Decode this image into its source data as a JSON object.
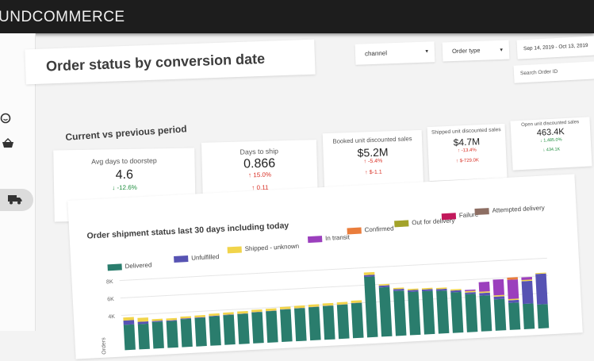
{
  "app": {
    "brand": "UNDCOMMERCE"
  },
  "page": {
    "title": "Order status by conversion date"
  },
  "filters": {
    "channel": "channel",
    "order_type": "Order type",
    "date_range": "Sep 14, 2019 - Oct 13, 2019",
    "search_placeholder": "Search Order ID"
  },
  "sidebar": {
    "icons": [
      "smile-icon",
      "basket-icon",
      "truck-icon"
    ],
    "active": "truck-icon"
  },
  "kpi_section": {
    "title": "Current vs previous period"
  },
  "kpis": [
    {
      "label": "Avg days to doorstep",
      "value": "4.6",
      "delta1": "-12.6%",
      "delta1_dir": "up",
      "delta2": "-0.66",
      "delta2_dir": "up"
    },
    {
      "label": "Days to ship",
      "value": "0.866",
      "delta1": "15.0%",
      "delta1_dir": "down",
      "delta2": "0.11",
      "delta2_dir": "down"
    },
    {
      "label": "Booked unit discounted sales",
      "value": "$5.2M",
      "delta1": "-5.4%",
      "delta1_dir": "down",
      "delta2": "$-1.1",
      "delta2_dir": "down"
    },
    {
      "label": "Shipped unit discounted sales",
      "value": "$4.7M",
      "delta1": "-13.4%",
      "delta1_dir": "down",
      "delta2": "$-729.0K",
      "delta2_dir": "down"
    },
    {
      "label": "Open unit discounted sales",
      "value": "463.4K",
      "delta1": "1,485.0%",
      "delta1_dir": "up",
      "delta2": "434.1K",
      "delta2_dir": "up"
    }
  ],
  "chart_data": {
    "type": "bar",
    "stacked": true,
    "title": "Order shipment status last 30 days including today",
    "ylabel": "Orders",
    "ylim": [
      0,
      10000
    ],
    "yticks": [
      "4K",
      "6K",
      "8K"
    ],
    "legend": [
      {
        "name": "Delivered",
        "color": "#2a7d6d"
      },
      {
        "name": "Unfulfilled",
        "color": "#5753b3"
      },
      {
        "name": "Shipped - unknown",
        "color": "#f1d44a"
      },
      {
        "name": "In transit",
        "color": "#9b3fbd"
      },
      {
        "name": "Confirmed",
        "color": "#ea7d3c"
      },
      {
        "name": "Out for delivery",
        "color": "#a3a32a"
      },
      {
        "name": "Failure",
        "color": "#c2185b"
      },
      {
        "name": "Attempted delivery",
        "color": "#8d6e63"
      }
    ],
    "series": [
      {
        "name": "Delivered",
        "values": [
          2900,
          2900,
          3050,
          3050,
          3200,
          3250,
          3350,
          3400,
          3450,
          3550,
          3600,
          3700,
          3750,
          3800,
          3850,
          3900,
          4000,
          6950,
          5650,
          5150,
          4950,
          4950,
          4900,
          4650,
          4350,
          4100,
          3600,
          3100,
          2900,
          2750
        ]
      },
      {
        "name": "Unfulfilled",
        "values": [
          500,
          260,
          110,
          90,
          70,
          60,
          50,
          50,
          40,
          40,
          30,
          30,
          30,
          30,
          30,
          30,
          30,
          200,
          200,
          200,
          200,
          200,
          200,
          200,
          200,
          300,
          300,
          300,
          2600,
          3500
        ]
      },
      {
        "name": "Shipped - unknown",
        "values": [
          350,
          450,
          220,
          230,
          230,
          240,
          250,
          250,
          260,
          260,
          260,
          270,
          270,
          270,
          270,
          270,
          270,
          300,
          150,
          150,
          150,
          150,
          150,
          150,
          150,
          150,
          150,
          150,
          150,
          100
        ]
      },
      {
        "name": "In transit",
        "values": [
          0,
          0,
          0,
          0,
          0,
          0,
          0,
          0,
          0,
          0,
          0,
          0,
          0,
          0,
          0,
          0,
          0,
          0,
          0,
          0,
          0,
          0,
          0,
          0,
          150,
          1100,
          1800,
          2200,
          300,
          0
        ]
      },
      {
        "name": "Confirmed",
        "values": [
          0,
          0,
          0,
          0,
          0,
          0,
          0,
          0,
          0,
          0,
          0,
          0,
          0,
          0,
          0,
          0,
          0,
          0,
          0,
          0,
          0,
          0,
          0,
          0,
          0,
          0,
          0,
          250,
          0,
          0
        ]
      }
    ]
  }
}
